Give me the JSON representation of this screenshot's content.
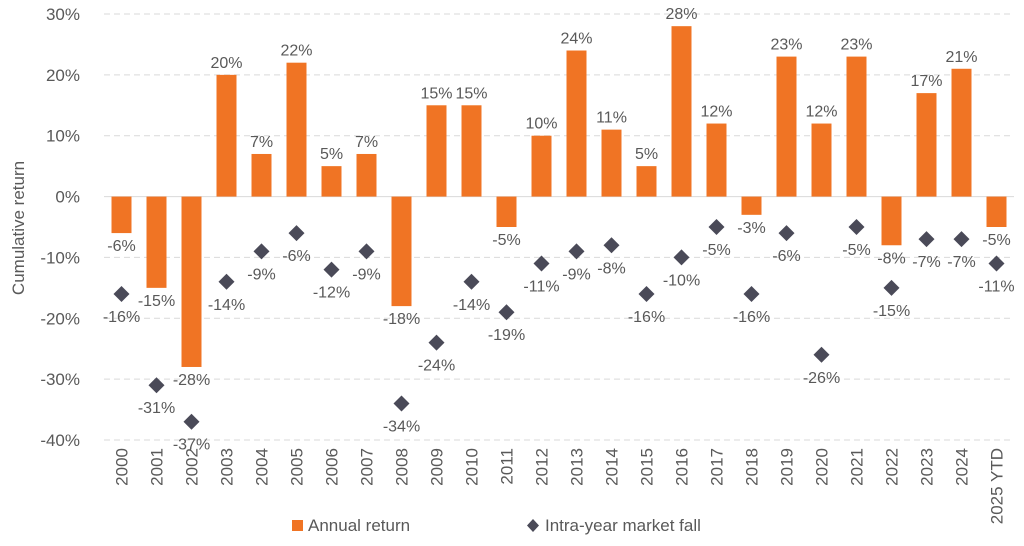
{
  "chart_data": {
    "type": "bar",
    "title": "",
    "xlabel": "",
    "ylabel": "Cumulative return",
    "ylim": [
      -40,
      30
    ],
    "yticks": [
      30,
      20,
      10,
      0,
      -10,
      -20,
      -30,
      -40
    ],
    "ytick_labels": [
      "30%",
      "20%",
      "10%",
      "0%",
      "-10%",
      "-20%",
      "-30%",
      "-40%"
    ],
    "grid": true,
    "legend_position": "bottom",
    "categories": [
      "2000",
      "2001",
      "2002",
      "2003",
      "2004",
      "2005",
      "2006",
      "2007",
      "2008",
      "2009",
      "2010",
      "2011",
      "2012",
      "2013",
      "2014",
      "2015",
      "2016",
      "2017",
      "2018",
      "2019",
      "2020",
      "2021",
      "2022",
      "2023",
      "2024",
      "2025 YTD"
    ],
    "series": [
      {
        "name": "Annual return",
        "kind": "bar",
        "color": "#F07424",
        "values": [
          -6,
          -15,
          -28,
          20,
          7,
          22,
          5,
          7,
          -18,
          15,
          15,
          -5,
          10,
          24,
          11,
          5,
          28,
          12,
          -3,
          23,
          12,
          23,
          -8,
          17,
          21,
          -5
        ],
        "labels": [
          "-6%",
          "-15%",
          "-28%",
          "20%",
          "7%",
          "22%",
          "5%",
          "7%",
          "-18%",
          "15%",
          "15%",
          "-5%",
          "10%",
          "24%",
          "11%",
          "5%",
          "28%",
          "12%",
          "-3%",
          "23%",
          "12%",
          "23%",
          "-8%",
          "17%",
          "21%",
          "-5%"
        ]
      },
      {
        "name": "Intra-year market fall",
        "kind": "scatter",
        "marker": "diamond",
        "color": "#4A4A58",
        "values": [
          -16,
          -31,
          -37,
          -14,
          -9,
          -6,
          -12,
          -9,
          -34,
          -24,
          -14,
          -19,
          -11,
          -9,
          -8,
          -16,
          -10,
          -5,
          -16,
          -6,
          -26,
          -5,
          -15,
          -7,
          -7,
          -11
        ],
        "labels": [
          "-16%",
          "-31%",
          "-37%",
          "-14%",
          "-9%",
          "-6%",
          "-12%",
          "-9%",
          "-34%",
          "-24%",
          "-14%",
          "-19%",
          "-11%",
          "-9%",
          "-8%",
          "-16%",
          "-10%",
          "-5%",
          "-16%",
          "-6%",
          "-26%",
          "-5%",
          "-15%",
          "-7%",
          "-7%",
          "-11%"
        ]
      }
    ]
  }
}
